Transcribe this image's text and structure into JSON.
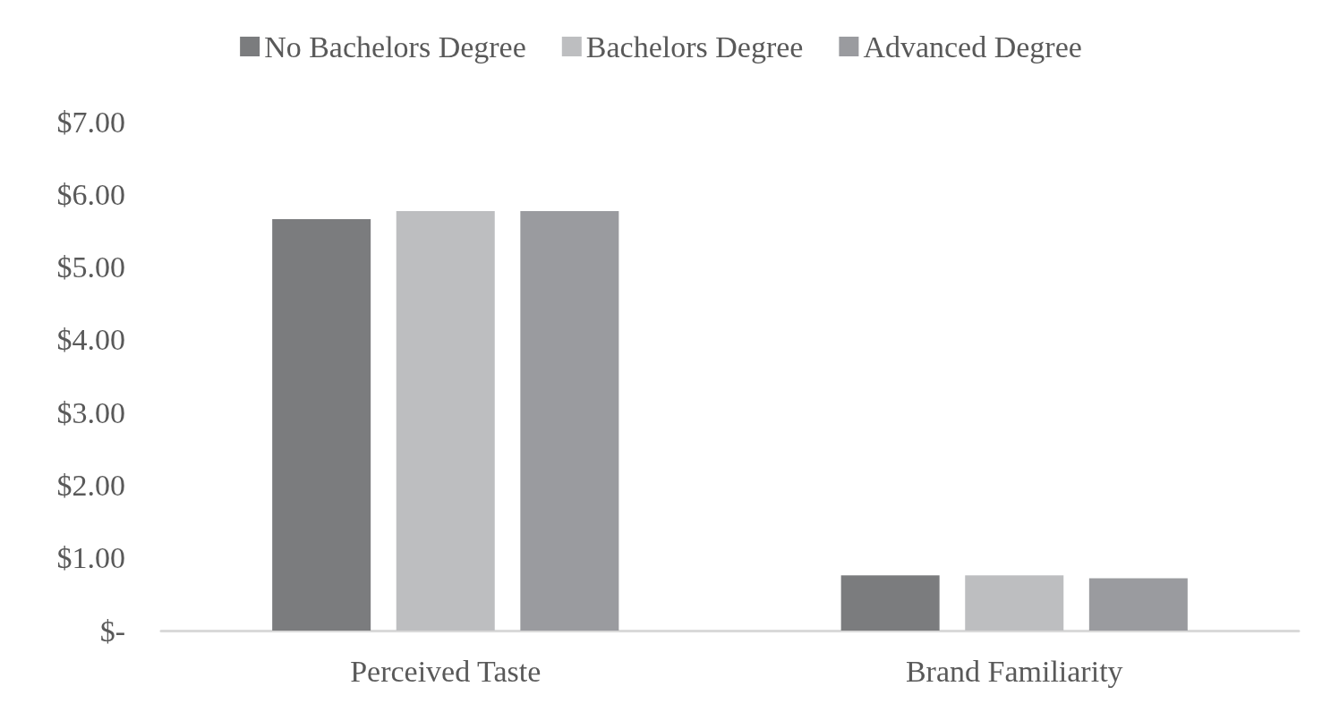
{
  "chart_data": {
    "type": "bar",
    "categories": [
      "Perceived Taste",
      "Brand Familiarity"
    ],
    "series": [
      {
        "name": "No Bachelors Degree",
        "color": "#7b7c7e",
        "values": [
          5.66,
          0.76
        ]
      },
      {
        "name": "Bachelors Degree",
        "color": "#bdbec0",
        "values": [
          5.77,
          0.76
        ]
      },
      {
        "name": "Advanced Degree",
        "color": "#9a9b9f",
        "values": [
          5.77,
          0.72
        ]
      }
    ],
    "ylim": [
      0,
      7
    ],
    "yticks": [
      {
        "value": 0,
        "label": "$-"
      },
      {
        "value": 1,
        "label": "$1.00"
      },
      {
        "value": 2,
        "label": "$2.00"
      },
      {
        "value": 3,
        "label": "$3.00"
      },
      {
        "value": 4,
        "label": "$4.00"
      },
      {
        "value": 5,
        "label": "$5.00"
      },
      {
        "value": 6,
        "label": "$6.00"
      },
      {
        "value": 7,
        "label": "$7.00"
      }
    ],
    "grid": false,
    "legend": "top"
  }
}
